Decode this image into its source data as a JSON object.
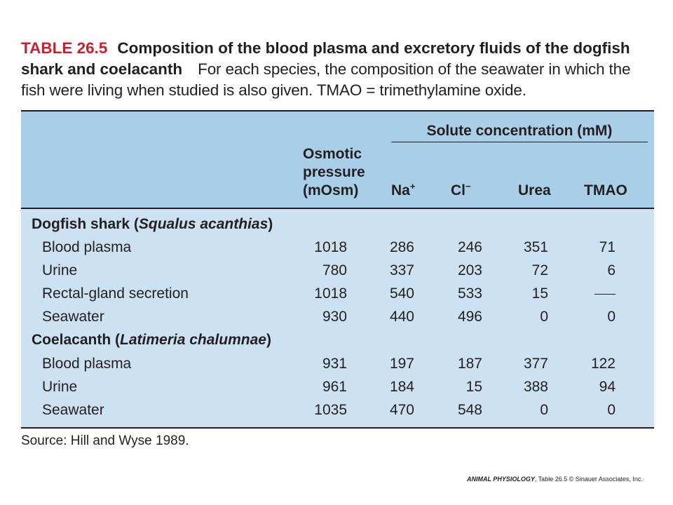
{
  "caption": {
    "label": "TABLE 26.5",
    "title": "Composition of the blood plasma and excretory fluids of the dogfish shark and coelacanth",
    "description": "For each species, the composition of the seawater in which the fish were living when studied is also given. TMAO = trimethylamine oxide."
  },
  "table": {
    "span_header": "Solute concentration (mM)",
    "columns": {
      "osmotic_line1": "Osmotic",
      "osmotic_line2": "pressure",
      "osmotic_line3": "(mOsm)",
      "na": "Na",
      "na_sup": "+",
      "cl": "Cl",
      "cl_sup": "−",
      "urea": "Urea",
      "tmao": "TMAO"
    },
    "groups": [
      {
        "name": "Dogfish shark",
        "species": "Squalus acanthias",
        "rows": [
          {
            "label": "Blood plasma",
            "osm": "1018",
            "na": "286",
            "cl": "246",
            "urea": "351",
            "tmao": "71"
          },
          {
            "label": "Urine",
            "osm": "780",
            "na": "337",
            "cl": "203",
            "urea": "72",
            "tmao": "6"
          },
          {
            "label": "Rectal-gland secretion",
            "osm": "1018",
            "na": "540",
            "cl": "533",
            "urea": "15",
            "tmao": ""
          },
          {
            "label": "Seawater",
            "osm": "930",
            "na": "440",
            "cl": "496",
            "urea": "0",
            "tmao": "0"
          }
        ]
      },
      {
        "name": "Coelacanth",
        "species": "Latimeria chalumnae",
        "rows": [
          {
            "label": "Blood plasma",
            "osm": "931",
            "na": "197",
            "cl": "187",
            "urea": "377",
            "tmao": "122"
          },
          {
            "label": "Urine",
            "osm": "961",
            "na": "184",
            "cl": "15",
            "urea": "388",
            "tmao": "94"
          },
          {
            "label": "Seawater",
            "osm": "1035",
            "na": "470",
            "cl": "548",
            "urea": "0",
            "tmao": "0"
          }
        ]
      }
    ]
  },
  "source": "Source: Hill and Wyse 1989.",
  "credit": {
    "book": "ANIMAL PHYSIOLOGY",
    "rest": ", Table 26.5 © Sinauer Associates, Inc."
  },
  "colors": {
    "label_red": "#c8202f",
    "header_blue": "#a9cfe8",
    "body_blue": "#cce1f1"
  }
}
